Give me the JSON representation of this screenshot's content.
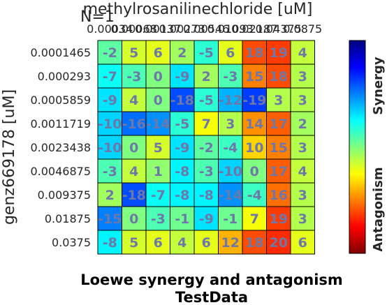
{
  "chart_data": {
    "type": "heatmap",
    "title": "Loewe synergy and antagonism",
    "subtitle": "TestData",
    "n_label": "N=1",
    "xlabel": "methylrosanilinechloride [uM]",
    "ylabel": "genz669178 [uM]",
    "x_ticks": [
      "0.00034",
      "0.00068",
      "0.00137",
      "0.00273",
      "0.00546",
      "0.01093",
      "0.02187",
      "0.04375",
      "0.0875"
    ],
    "y_ticks": [
      "0.0001465",
      "0.000293",
      "0.0005859",
      "0.0011719",
      "0.0023438",
      "0.0046875",
      "0.009375",
      "0.01875",
      "0.0375"
    ],
    "values": [
      [
        -2,
        5,
        6,
        2,
        -5,
        6,
        18,
        19,
        4
      ],
      [
        -7,
        -3,
        0,
        -9,
        2,
        -3,
        15,
        18,
        3
      ],
      [
        -9,
        4,
        0,
        -18,
        -5,
        -12,
        -19,
        3,
        3
      ],
      [
        -10,
        -16,
        -14,
        -5,
        7,
        3,
        14,
        17,
        2
      ],
      [
        -10,
        0,
        5,
        -9,
        -2,
        -4,
        10,
        15,
        3
      ],
      [
        -3,
        4,
        1,
        -8,
        -3,
        -10,
        0,
        17,
        4
      ],
      [
        2,
        -18,
        -7,
        -8,
        -8,
        -14,
        -4,
        16,
        3
      ],
      [
        -15,
        0,
        -3,
        -1,
        -9,
        -1,
        7,
        19,
        3
      ],
      [
        -8,
        5,
        6,
        4,
        6,
        12,
        18,
        20,
        6
      ]
    ],
    "color_range": [
      -30,
      30
    ],
    "colorbar_labels": {
      "top": "Synergy",
      "bottom": "Antagonism"
    },
    "colormap": "jet",
    "grid": true
  }
}
